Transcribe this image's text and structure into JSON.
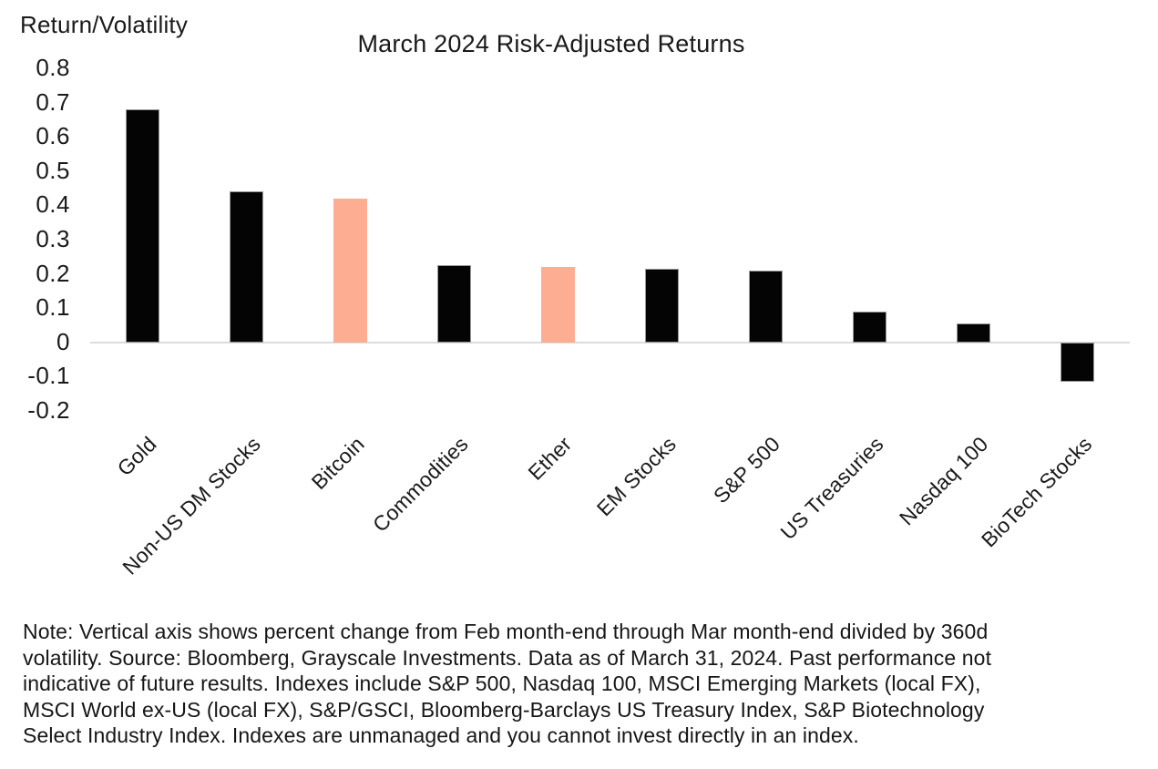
{
  "chart_data": {
    "type": "bar",
    "title": "March 2024 Risk-Adjusted Returns",
    "y_axis_label": "Return/Volatility",
    "xlabel": "",
    "ylabel": "Return/Volatility",
    "categories": [
      "Gold",
      "Non-US DM Stocks",
      "Bitcoin",
      "Commodities",
      "Ether",
      "EM Stocks",
      "S&P 500",
      "US Treasuries",
      "Nasdaq 100",
      "BioTech Stocks"
    ],
    "values": [
      0.68,
      0.44,
      0.42,
      0.225,
      0.22,
      0.215,
      0.21,
      0.09,
      0.055,
      -0.115
    ],
    "highlighted_categories": [
      "Bitcoin",
      "Ether"
    ],
    "yticks": [
      "0.8",
      "0.7",
      "0.6",
      "0.5",
      "0.4",
      "0.3",
      "0.2",
      "0.1",
      "0",
      "-0.1",
      "-0.2"
    ],
    "ylim": [
      -0.2,
      0.8
    ],
    "grid": "zero-line-only",
    "legend_position": "none",
    "colors": {
      "bar_default": "#040404",
      "bar_highlight": "#fcad92",
      "bar_border": "#989898",
      "zero_line": "#dcdcdc",
      "text": "#1a1a1a"
    },
    "note": "Note: Vertical axis shows percent change from Feb month-end through Mar month-end divided by 360d\nvolatility. Source: Bloomberg, Grayscale Investments. Data as of March 31, 2024. Past performance not\nindicative of future results. Indexes include S&P 500, Nasdaq 100, MSCI Emerging Markets (local FX),\nMSCI World ex-US (local FX), S&P/GSCI, Bloomberg-Barclays US Treasury Index, S&P Biotechnology\nSelect Industry Index. Indexes are unmanaged and you cannot invest directly in an index."
  }
}
